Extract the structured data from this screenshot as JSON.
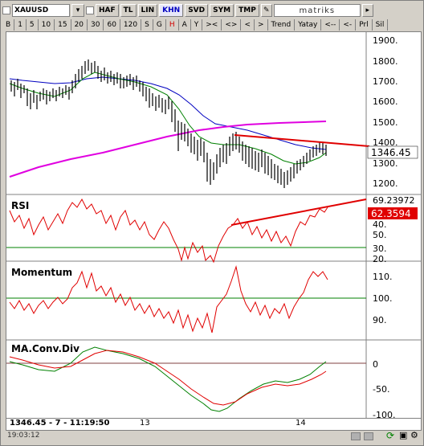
{
  "window": {
    "symbol": "XAUUSD",
    "brand": "matriks"
  },
  "toolbar": {
    "buttons": [
      "HAF",
      "TL",
      "LIN",
      "KHN",
      "SVD",
      "SYM",
      "TMP"
    ]
  },
  "periods": {
    "items": [
      "B",
      "1",
      "5",
      "10",
      "15",
      "20",
      "30",
      "60",
      "120",
      "S",
      "G",
      "H",
      "A",
      "Y",
      "><",
      "<>",
      "<",
      ">",
      "Trend",
      "Yatay",
      "<--",
      "<-",
      "Prl",
      "Sil"
    ]
  },
  "price_panel": {
    "ticks": [
      "1900.",
      "1800.",
      "1700.",
      "1600.",
      "1500.",
      "1400.",
      "1300.",
      "1200."
    ],
    "last_price": "1346.45"
  },
  "rsi_panel": {
    "title": "RSI",
    "ticks": [
      "40.",
      "50.",
      "30.",
      "20."
    ],
    "top_value": "69.23972",
    "current": "62.3594"
  },
  "momentum_panel": {
    "title": "Momentum",
    "ticks": [
      "110.",
      "100.",
      "90."
    ]
  },
  "macd_panel": {
    "title": "MA.Conv.Div",
    "ticks": [
      "0",
      "-50.",
      "-100."
    ]
  },
  "xaxis": {
    "labels": [
      "13",
      "14"
    ]
  },
  "status": {
    "readout": "1346.45 - 7 - 11:19:50",
    "time": "19:03:12"
  },
  "colors": {
    "red": "#e00000",
    "blue": "#0000c0",
    "green": "#008000",
    "magenta": "#e000e0",
    "price": "#000000"
  }
}
